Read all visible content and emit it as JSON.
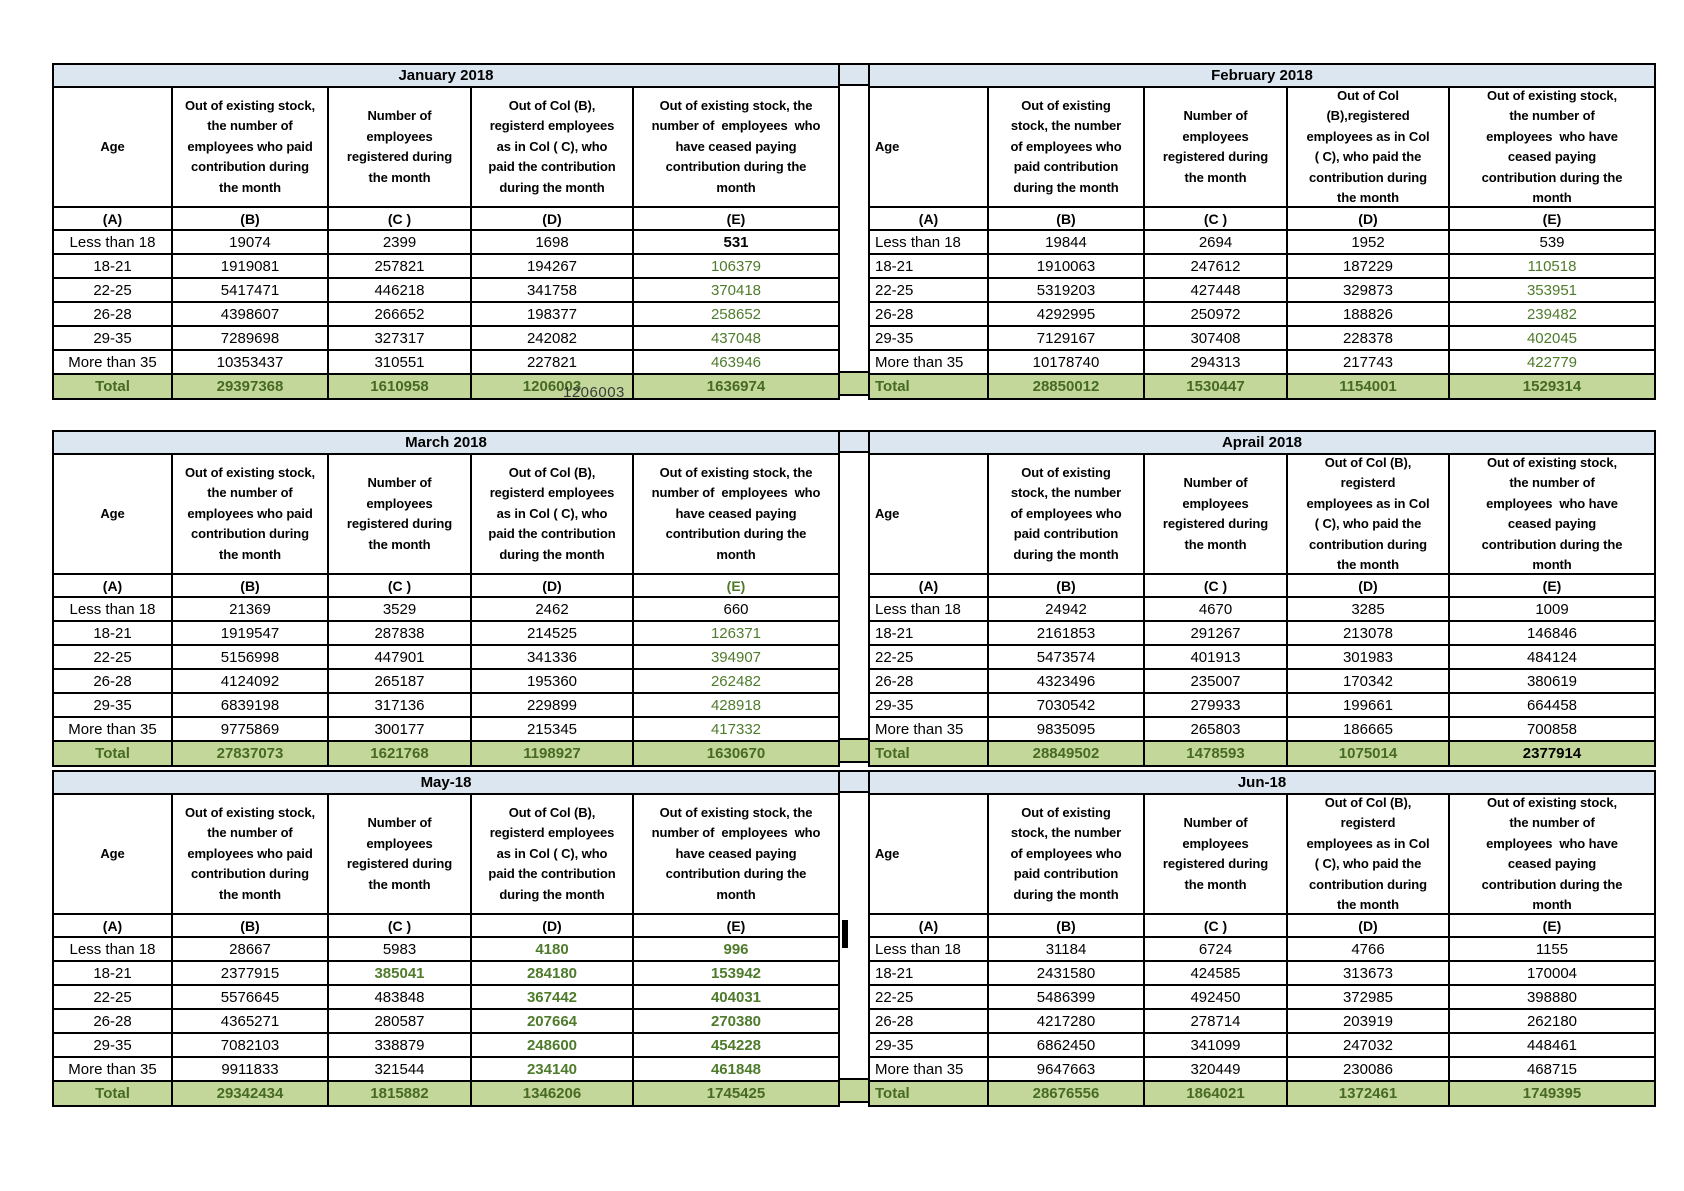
{
  "colors": {
    "title_bg": "#dce6f1",
    "total_bg": "#c4d79b",
    "value_green": "#4e7b2b",
    "total_text_green": "#466a21",
    "border": "#000000"
  },
  "overlay": {
    "text": "1206003"
  },
  "shared_headers_note": "column header texts per table below",
  "tables": [
    {
      "id": "january",
      "title": "January 2018",
      "age_align": "center",
      "headers": {
        "age": "Age",
        "b": "Out of existing stock,\nthe number of\nemployees who paid\ncontribution during\nthe month",
        "c": "Number of\nemployees\nregistered during\nthe month",
        "d": "Out of Col (B),\nregisterd employees\nas in Col ( C), who\npaid the contribution\nduring the month",
        "e": "Out of existing stock, the\nnumber of  employees  who\nhave ceased paying\ncontribution during the\nmonth"
      },
      "col_labels": [
        "(A)",
        "(B)",
        "(C )",
        "(D)",
        "(E)"
      ],
      "rows": [
        {
          "cells": [
            "Less than 18",
            "19074",
            "2399",
            "1698",
            "531"
          ],
          "styles": [
            null,
            null,
            null,
            null,
            "bold"
          ]
        },
        {
          "cells": [
            "18-21",
            "1919081",
            "257821",
            "194267",
            "106379"
          ],
          "styles": [
            null,
            null,
            null,
            null,
            "green"
          ]
        },
        {
          "cells": [
            "22-25",
            "5417471",
            "446218",
            "341758",
            "370418"
          ],
          "styles": [
            null,
            null,
            null,
            null,
            "green"
          ]
        },
        {
          "cells": [
            "26-28",
            "4398607",
            "266652",
            "198377",
            "258652"
          ],
          "styles": [
            null,
            null,
            null,
            null,
            "green"
          ]
        },
        {
          "cells": [
            "29-35",
            "7289698",
            "327317",
            "242082",
            "437048"
          ],
          "styles": [
            null,
            null,
            null,
            null,
            "green"
          ]
        },
        {
          "cells": [
            "More than 35",
            "10353437",
            "310551",
            "227821",
            "463946"
          ],
          "styles": [
            null,
            null,
            null,
            null,
            "green"
          ]
        }
      ],
      "total": {
        "cells": [
          "Total",
          "29397368",
          "1610958",
          "1206003",
          "1636974"
        ]
      }
    },
    {
      "id": "february",
      "title": "February 2018",
      "age_align": "left",
      "headers": {
        "age": "Age",
        "b": "Out of existing\nstock, the number\nof employees who\npaid contribution\nduring the month",
        "c": "Number of\nemployees\nregistered during\nthe month",
        "d": "Out of Col\n(B),registered\nemployees as in Col\n( C), who paid the\ncontribution during\nthe month",
        "e": "Out of existing stock,\nthe number of\nemployees  who have\nceased paying\ncontribution during the\nmonth"
      },
      "col_labels": [
        "(A)",
        "(B)",
        "(C )",
        "(D)",
        "(E)"
      ],
      "rows": [
        {
          "cells": [
            "Less than 18",
            "19844",
            "2694",
            "1952",
            "539"
          ]
        },
        {
          "cells": [
            "18-21",
            "1910063",
            "247612",
            "187229",
            "110518"
          ],
          "styles": [
            null,
            null,
            null,
            null,
            "green"
          ]
        },
        {
          "cells": [
            "22-25",
            "5319203",
            "427448",
            "329873",
            "353951"
          ],
          "styles": [
            null,
            null,
            null,
            null,
            "green"
          ]
        },
        {
          "cells": [
            "26-28",
            "4292995",
            "250972",
            "188826",
            "239482"
          ],
          "styles": [
            null,
            null,
            null,
            null,
            "green"
          ]
        },
        {
          "cells": [
            "29-35",
            "7129167",
            "307408",
            "228378",
            "402045"
          ],
          "styles": [
            null,
            null,
            null,
            null,
            "green"
          ]
        },
        {
          "cells": [
            "More than 35",
            "10178740",
            "294313",
            "217743",
            "422779"
          ],
          "styles": [
            null,
            null,
            null,
            null,
            "green"
          ]
        }
      ],
      "total": {
        "cells": [
          "Total",
          "28850012",
          "1530447",
          "1154001",
          "1529314"
        ]
      }
    },
    {
      "id": "march",
      "title": "March 2018",
      "age_align": "center",
      "headers": {
        "age": "Age",
        "b": "Out of existing stock,\nthe number of\nemployees who paid\ncontribution during\nthe month",
        "c": "Number of\nemployees\nregistered during\nthe month",
        "d": "Out of Col (B),\nregisterd employees\nas in Col ( C), who\npaid the contribution\nduring the month",
        "e": "Out of existing stock, the\nnumber of  employees  who\nhave ceased paying\ncontribution during the\nmonth"
      },
      "col_labels": [
        "(A)",
        "(B)",
        "(C )",
        "(D)",
        "(E)"
      ],
      "label_styles": [
        null,
        null,
        null,
        null,
        "green"
      ],
      "rows": [
        {
          "cells": [
            "Less than 18",
            "21369",
            "3529",
            "2462",
            "660"
          ]
        },
        {
          "cells": [
            "18-21",
            "1919547",
            "287838",
            "214525",
            "126371"
          ],
          "styles": [
            null,
            null,
            null,
            null,
            "green"
          ]
        },
        {
          "cells": [
            "22-25",
            "5156998",
            "447901",
            "341336",
            "394907"
          ],
          "styles": [
            null,
            null,
            null,
            null,
            "green"
          ]
        },
        {
          "cells": [
            "26-28",
            "4124092",
            "265187",
            "195360",
            "262482"
          ],
          "styles": [
            null,
            null,
            null,
            null,
            "green"
          ]
        },
        {
          "cells": [
            "29-35",
            "6839198",
            "317136",
            "229899",
            "428918"
          ],
          "styles": [
            null,
            null,
            null,
            null,
            "green"
          ]
        },
        {
          "cells": [
            "More than 35",
            "9775869",
            "300177",
            "215345",
            "417332"
          ],
          "styles": [
            null,
            null,
            null,
            null,
            "green"
          ]
        }
      ],
      "total": {
        "cells": [
          "Total",
          "27837073",
          "1621768",
          "1198927",
          "1630670"
        ]
      }
    },
    {
      "id": "april",
      "title": "Aprail 2018",
      "age_align": "left",
      "headers": {
        "age": "Age",
        "b": "Out of existing\nstock, the number\nof employees who\npaid contribution\nduring the month",
        "c": "Number of\nemployees\nregistered during\nthe month",
        "d": "Out of Col (B),\nregisterd\nemployees as in Col\n( C), who paid the\ncontribution during\nthe month",
        "e": "Out of existing stock,\nthe number of\nemployees  who have\nceased paying\ncontribution during the\nmonth"
      },
      "col_labels": [
        "(A)",
        "(B)",
        "(C )",
        "(D)",
        "(E)"
      ],
      "rows": [
        {
          "cells": [
            "Less than 18",
            "24942",
            "4670",
            "3285",
            "1009"
          ]
        },
        {
          "cells": [
            "18-21",
            "2161853",
            "291267",
            "213078",
            "146846"
          ]
        },
        {
          "cells": [
            "22-25",
            "5473574",
            "401913",
            "301983",
            "484124"
          ]
        },
        {
          "cells": [
            "26-28",
            "4323496",
            "235007",
            "170342",
            "380619"
          ]
        },
        {
          "cells": [
            "29-35",
            "7030542",
            "279933",
            "199661",
            "664458"
          ]
        },
        {
          "cells": [
            "More than 35",
            "9835095",
            "265803",
            "186665",
            "700858"
          ]
        }
      ],
      "total": {
        "cells": [
          "Total",
          "28849502",
          "1478593",
          "1075014",
          "2377914"
        ],
        "styles": [
          null,
          null,
          null,
          null,
          "darkbold"
        ]
      }
    },
    {
      "id": "may",
      "title": "May-18",
      "age_align": "center",
      "headers": {
        "age": "Age",
        "b": "Out of existing stock,\nthe number of\nemployees who paid\ncontribution during\nthe month",
        "c": "Number of\nemployees\nregistered during\nthe month",
        "d": "Out of Col (B),\nregisterd employees\nas in Col ( C), who\npaid the contribution\nduring the month",
        "e": "Out of existing stock, the\nnumber of  employees  who\nhave ceased paying\ncontribution during the\nmonth"
      },
      "col_labels": [
        "(A)",
        "(B)",
        "(C )",
        "(D)",
        "(E)"
      ],
      "rows": [
        {
          "cells": [
            "Less than 18",
            "28667",
            "5983",
            "4180",
            "996"
          ],
          "styles": [
            null,
            null,
            null,
            "greenbold",
            "greenbold"
          ]
        },
        {
          "cells": [
            "18-21",
            "2377915",
            "385041",
            "284180",
            "153942"
          ],
          "styles": [
            null,
            null,
            "greenbold",
            "greenbold",
            "greenbold"
          ]
        },
        {
          "cells": [
            "22-25",
            "5576645",
            "483848",
            "367442",
            "404031"
          ],
          "styles": [
            null,
            null,
            null,
            "greenbold",
            "greenbold"
          ]
        },
        {
          "cells": [
            "26-28",
            "4365271",
            "280587",
            "207664",
            "270380"
          ],
          "styles": [
            null,
            null,
            null,
            "greenbold",
            "greenbold"
          ]
        },
        {
          "cells": [
            "29-35",
            "7082103",
            "338879",
            "248600",
            "454228"
          ],
          "styles": [
            null,
            null,
            null,
            "greenbold",
            "greenbold"
          ]
        },
        {
          "cells": [
            "More than 35",
            "9911833",
            "321544",
            "234140",
            "461848"
          ],
          "styles": [
            null,
            null,
            null,
            "greenbold",
            "greenbold"
          ]
        }
      ],
      "total": {
        "cells": [
          "Total",
          "29342434",
          "1815882",
          "1346206",
          "1745425"
        ]
      }
    },
    {
      "id": "june",
      "title": "Jun-18",
      "age_align": "left",
      "headers": {
        "age": "Age",
        "b": "Out of existing\nstock, the number\nof employees who\npaid contribution\nduring the month",
        "c": "Number of\nemployees\nregistered during\nthe month",
        "d": "Out of Col (B),\nregisterd\nemployees as in Col\n( C), who paid the\ncontribution during\nthe month",
        "e": "Out of existing stock,\nthe number of\nemployees  who have\nceased paying\ncontribution during the\nmonth"
      },
      "col_labels": [
        "(A)",
        "(B)",
        "(C )",
        "(D)",
        "(E)"
      ],
      "rows": [
        {
          "cells": [
            "Less than 18",
            "31184",
            "6724",
            "4766",
            "1155"
          ]
        },
        {
          "cells": [
            "18-21",
            "2431580",
            "424585",
            "313673",
            "170004"
          ]
        },
        {
          "cells": [
            "22-25",
            "5486399",
            "492450",
            "372985",
            "398880"
          ]
        },
        {
          "cells": [
            "26-28",
            "4217280",
            "278714",
            "203919",
            "262180"
          ]
        },
        {
          "cells": [
            "29-35",
            "6862450",
            "341099",
            "247032",
            "448461"
          ]
        },
        {
          "cells": [
            "More than 35",
            "9647663",
            "320449",
            "230086",
            "468715"
          ]
        }
      ],
      "total": {
        "cells": [
          "Total",
          "28676556",
          "1864021",
          "1372461",
          "1749395"
        ]
      }
    }
  ]
}
